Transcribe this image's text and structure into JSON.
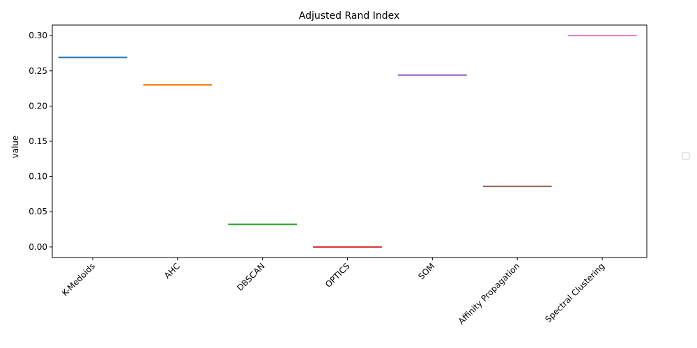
{
  "chart_data": {
    "type": "bar",
    "title": "Adjusted Rand Index",
    "xlabel": "",
    "ylabel": "value",
    "categories": [
      "K-Medoids",
      "AHC",
      "DBSCAN",
      "OPTICS",
      "SOM",
      "Affinity Propagation",
      "Spectral Clustering"
    ],
    "values": [
      0.269,
      0.23,
      0.032,
      0.0,
      0.244,
      0.086,
      0.3
    ],
    "colors": [
      "#1f77b4",
      "#ff7f0e",
      "#2ca02c",
      "#d62728",
      "#9467bd",
      "#8c564b",
      "#e377c2"
    ],
    "ylim": [
      -0.015,
      0.315
    ],
    "yticks": [
      0.0,
      0.05,
      0.1,
      0.15,
      0.2,
      0.25,
      0.3
    ],
    "ytick_labels": [
      "0.00",
      "0.05",
      "0.10",
      "0.15",
      "0.20",
      "0.25",
      "0.30"
    ],
    "grid": false,
    "legend": {
      "placement": "center-right",
      "entries": []
    }
  }
}
